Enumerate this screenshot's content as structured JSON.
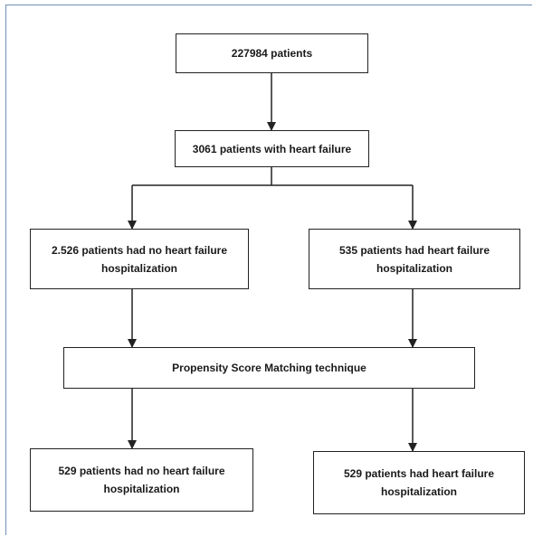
{
  "flowchart": {
    "nodes": {
      "all_patients": "227984 patients",
      "heart_failure": "3061 patients with heart failure",
      "no_hosp_before": "2.526 patients had no heart failure hospitalization",
      "hosp_before": "535 patients had heart failure hospitalization",
      "psm": "Propensity Score Matching technique",
      "no_hosp_after": "529 patients had no heart failure hospitalization",
      "hosp_after": "529 patients had heart failure hospitalization"
    },
    "colors": {
      "border": "#222222",
      "arrow": "#222222",
      "frame": "#6f8fb8"
    }
  }
}
